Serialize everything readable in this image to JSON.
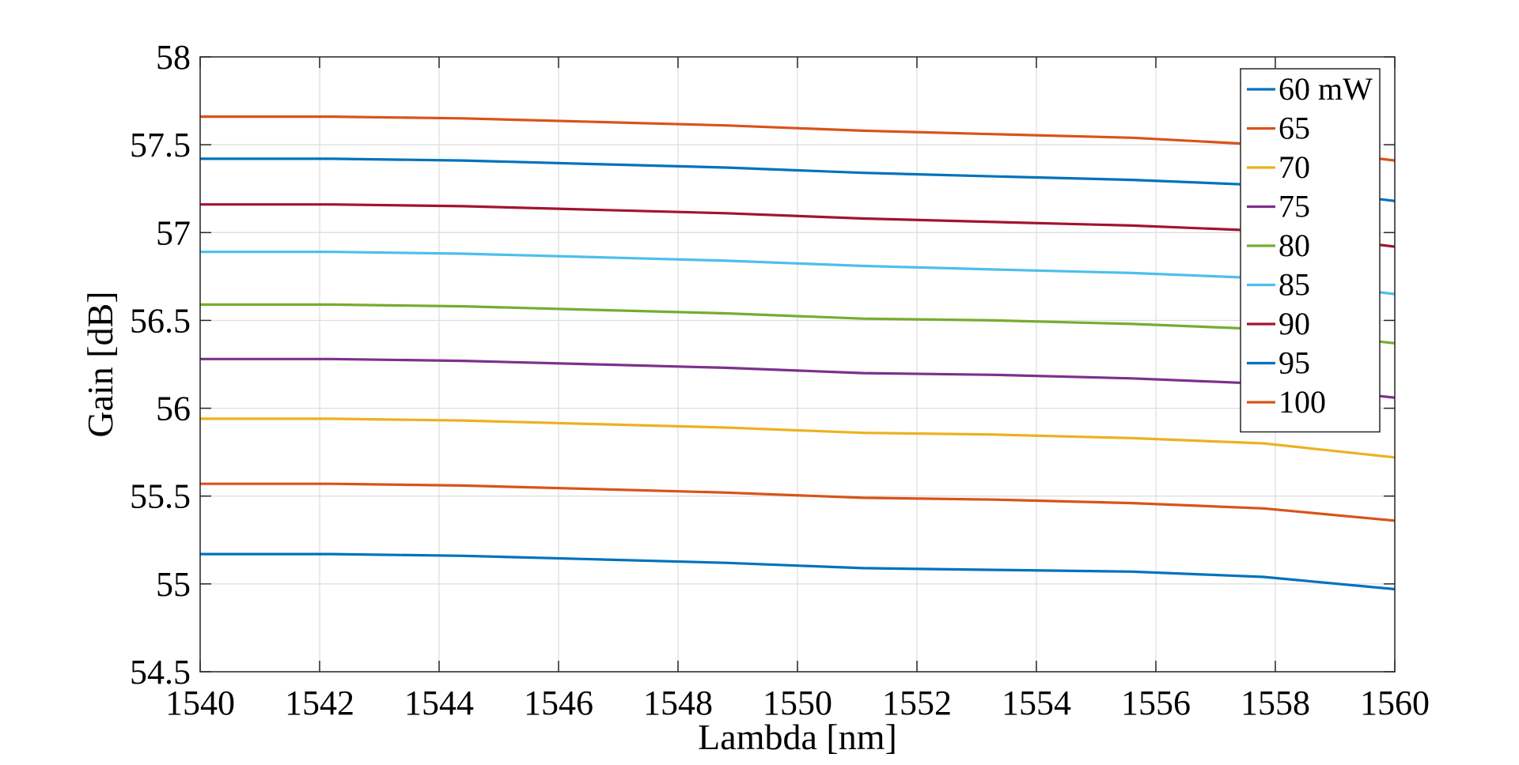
{
  "chart_data": {
    "type": "line",
    "title": "",
    "xlabel": "Lambda [nm]",
    "ylabel": "Gain [dB]",
    "xlim": [
      1540,
      1560
    ],
    "ylim": [
      54.5,
      58
    ],
    "xticks": [
      1540,
      1542,
      1544,
      1546,
      1548,
      1550,
      1552,
      1554,
      1556,
      1558,
      1560
    ],
    "yticks": [
      54.5,
      55,
      55.5,
      56,
      56.5,
      57,
      57.5,
      58
    ],
    "xtick_labels": [
      "1540",
      "1542",
      "1544",
      "1546",
      "1548",
      "1550",
      "1552",
      "1554",
      "1556",
      "1558",
      "1560"
    ],
    "ytick_labels": [
      "54.5",
      "55",
      "55.5",
      "56",
      "56.5",
      "57",
      "57.5",
      "58"
    ],
    "grid": true,
    "legend_position": "top-right",
    "x": [
      1540,
      1542.2,
      1544.4,
      1546.6,
      1548.8,
      1551.1,
      1553.3,
      1555.6,
      1557.8,
      1560
    ],
    "series": [
      {
        "name": "60 mW",
        "color": "#0072BD",
        "values": [
          55.17,
          55.17,
          55.16,
          55.14,
          55.12,
          55.09,
          55.08,
          55.07,
          55.04,
          54.97
        ]
      },
      {
        "name": "65",
        "color": "#D95319",
        "values": [
          55.57,
          55.57,
          55.56,
          55.54,
          55.52,
          55.49,
          55.48,
          55.46,
          55.43,
          55.36
        ]
      },
      {
        "name": "70",
        "color": "#EDB120",
        "values": [
          55.94,
          55.94,
          55.93,
          55.91,
          55.89,
          55.86,
          55.85,
          55.83,
          55.8,
          55.72
        ]
      },
      {
        "name": "75",
        "color": "#7E2F8E",
        "values": [
          56.28,
          56.28,
          56.27,
          56.25,
          56.23,
          56.2,
          56.19,
          56.17,
          56.14,
          56.06
        ]
      },
      {
        "name": "80",
        "color": "#77AC30",
        "values": [
          56.59,
          56.59,
          56.58,
          56.56,
          56.54,
          56.51,
          56.5,
          56.48,
          56.45,
          56.37
        ]
      },
      {
        "name": "85",
        "color": "#4DBEEE",
        "values": [
          56.89,
          56.89,
          56.88,
          56.86,
          56.84,
          56.81,
          56.79,
          56.77,
          56.74,
          56.65
        ]
      },
      {
        "name": "90",
        "color": "#A2142F",
        "values": [
          57.16,
          57.16,
          57.15,
          57.13,
          57.11,
          57.08,
          57.06,
          57.04,
          57.01,
          56.92
        ]
      },
      {
        "name": "95",
        "color": "#0072BD",
        "values": [
          57.42,
          57.42,
          57.41,
          57.39,
          57.37,
          57.34,
          57.32,
          57.3,
          57.27,
          57.18
        ]
      },
      {
        "name": "100",
        "color": "#D95319",
        "values": [
          57.66,
          57.66,
          57.65,
          57.63,
          57.61,
          57.58,
          57.56,
          57.54,
          57.5,
          57.41
        ]
      }
    ]
  }
}
